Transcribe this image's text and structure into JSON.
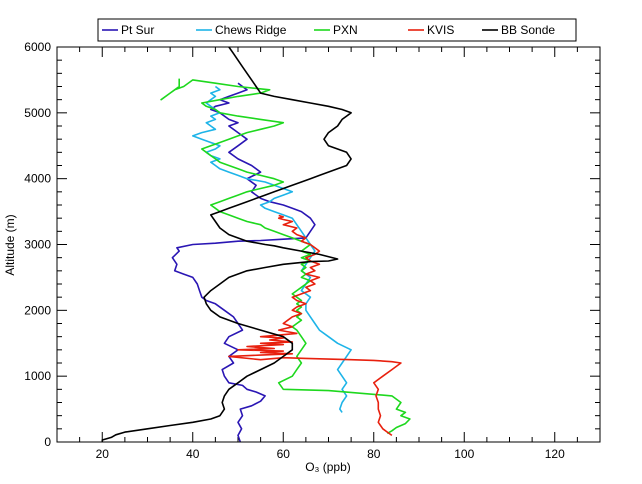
{
  "chart_data": {
    "type": "line",
    "title": "",
    "xlabel": "O₃ (ppb)",
    "ylabel": "Altitude (m)",
    "xlim": [
      10,
      130
    ],
    "ylim": [
      0,
      6000
    ],
    "x_ticks": [
      20,
      40,
      60,
      80,
      100,
      120
    ],
    "y_ticks": [
      0,
      1000,
      2000,
      3000,
      4000,
      5000,
      6000
    ],
    "x_tick_labels": [
      "20",
      "40",
      "60",
      "80",
      "100",
      "120"
    ],
    "y_tick_labels": [
      "0",
      "1000",
      "2000",
      "3000",
      "4000",
      "5000",
      "6000"
    ],
    "grid": false,
    "legend_position": "top",
    "series": [
      {
        "name": "Pt Sur",
        "color": "#2a16b4",
        "x": [
          50.5,
          50,
          50.8,
          50,
          51,
          50.5,
          53,
          55,
          56,
          54,
          52,
          51,
          48,
          47,
          46.5,
          49,
          48,
          50,
          47,
          48,
          51,
          50,
          49,
          47,
          45,
          43,
          42,
          41.5,
          41,
          40,
          38,
          36,
          36.5,
          35.5,
          37,
          36.5,
          40,
          45,
          50,
          55,
          60,
          65,
          66,
          67,
          66,
          64,
          62,
          60,
          57,
          55,
          53,
          54,
          52,
          55,
          53,
          50,
          48,
          50,
          52,
          50,
          48,
          50,
          48,
          46,
          44,
          45,
          48,
          46,
          48,
          50,
          52,
          51,
          50
        ],
        "y": [
          0,
          100,
          200,
          300,
          400,
          500,
          550,
          620,
          700,
          760,
          800,
          860,
          900,
          1000,
          1100,
          1200,
          1300,
          1400,
          1500,
          1600,
          1700,
          1800,
          1900,
          2000,
          2100,
          2150,
          2200,
          2300,
          2400,
          2500,
          2550,
          2600,
          2700,
          2800,
          2900,
          2950,
          3000,
          3020,
          3050,
          3060,
          3080,
          3100,
          3200,
          3300,
          3400,
          3500,
          3550,
          3600,
          3650,
          3700,
          3800,
          3900,
          4000,
          4100,
          4200,
          4300,
          4400,
          4500,
          4600,
          4700,
          4800,
          4850,
          4900,
          5000,
          5050,
          5100,
          5150,
          5200,
          5250,
          5300,
          5350,
          5400,
          5450
        ]
      },
      {
        "name": "Chews Ridge",
        "color": "#1eb4e8",
        "x": [
          73,
          72.5,
          73,
          74,
          73,
          74,
          73,
          72,
          73,
          74,
          75,
          72,
          70,
          68,
          67,
          66,
          65,
          65,
          66,
          64,
          65,
          66,
          64,
          65,
          66,
          67,
          66,
          65,
          64,
          63,
          62,
          60,
          58,
          56,
          55,
          57,
          58,
          60,
          62,
          60,
          58,
          56,
          52,
          50,
          48,
          46,
          45,
          44,
          46,
          44,
          43,
          45,
          46,
          44,
          42,
          40,
          42,
          45,
          44,
          43,
          45,
          44,
          46,
          45,
          44,
          43,
          44,
          45,
          44,
          46,
          45
        ],
        "y": [
          450,
          500,
          600,
          700,
          800,
          900,
          1000,
          1100,
          1200,
          1300,
          1400,
          1500,
          1600,
          1700,
          1800,
          1900,
          2000,
          2100,
          2200,
          2300,
          2400,
          2500,
          2600,
          2700,
          2800,
          2900,
          3000,
          3100,
          3200,
          3300,
          3400,
          3450,
          3500,
          3550,
          3600,
          3650,
          3700,
          3750,
          3800,
          3850,
          3900,
          3950,
          4000,
          4050,
          4100,
          4150,
          4200,
          4250,
          4300,
          4350,
          4400,
          4450,
          4500,
          4550,
          4600,
          4650,
          4700,
          4750,
          4800,
          4850,
          4900,
          4950,
          5000,
          5050,
          5100,
          5150,
          5200,
          5250,
          5300,
          5350,
          5400
        ]
      },
      {
        "name": "PXN",
        "color": "#1ed81e",
        "x": [
          83,
          84,
          85,
          87,
          88,
          86,
          87,
          85,
          86,
          84,
          70,
          60,
          59,
          62,
          63,
          64,
          63,
          64,
          65,
          64,
          63,
          62,
          63,
          64,
          63,
          64,
          63,
          64,
          63,
          64,
          63,
          62,
          63,
          64,
          65,
          66,
          64,
          65,
          64,
          65,
          64,
          66,
          64,
          66,
          64,
          65,
          66,
          64,
          62,
          60,
          58,
          56,
          55,
          52,
          50,
          48,
          46,
          45,
          44,
          46,
          48,
          50,
          52,
          55,
          58,
          60,
          58,
          55,
          52,
          50,
          48,
          46,
          45,
          44,
          43,
          42,
          44,
          46,
          48,
          50,
          52,
          55,
          58,
          60,
          55,
          50,
          46,
          45,
          43,
          42,
          46,
          50,
          55,
          57,
          50,
          45,
          40,
          38,
          36,
          35,
          34,
          33,
          35,
          37,
          37
        ],
        "y": [
          130,
          170,
          220,
          280,
          350,
          400,
          450,
          500,
          600,
          700,
          780,
          800,
          900,
          1000,
          1100,
          1200,
          1300,
          1400,
          1500,
          1600,
          1700,
          1750,
          1800,
          1850,
          1900,
          1950,
          2000,
          2050,
          2100,
          2150,
          2200,
          2250,
          2300,
          2350,
          2400,
          2450,
          2500,
          2550,
          2600,
          2650,
          2700,
          2750,
          2800,
          2850,
          2900,
          2950,
          3000,
          3050,
          3100,
          3150,
          3200,
          3250,
          3300,
          3350,
          3400,
          3450,
          3500,
          3550,
          3600,
          3650,
          3700,
          3750,
          3800,
          3850,
          3900,
          3950,
          4000,
          4050,
          4100,
          4150,
          4200,
          4250,
          4300,
          4350,
          4400,
          4450,
          4500,
          4550,
          4600,
          4650,
          4700,
          4750,
          4800,
          4850,
          4900,
          4950,
          5000,
          5050,
          5100,
          5150,
          5200,
          5250,
          5300,
          5350,
          5400,
          5450,
          5500,
          5400,
          5350,
          5300,
          5250,
          5200,
          5300,
          5400,
          5520
        ]
      },
      {
        "name": "KVIS",
        "color": "#e8200e",
        "x": [
          84,
          83,
          82,
          81.5,
          81,
          81.5,
          81,
          81,
          80.5,
          81,
          80,
          82,
          84,
          86,
          84,
          80,
          75,
          70,
          65,
          60,
          55,
          48,
          55,
          62,
          55,
          60,
          50,
          58,
          52,
          60,
          55,
          62,
          57,
          60,
          55,
          63,
          59,
          62,
          60,
          61,
          62,
          64,
          62,
          63,
          65,
          63,
          62,
          64,
          66,
          65,
          67,
          66,
          68,
          65,
          67,
          66,
          68,
          66,
          65,
          67,
          68,
          67,
          66,
          64,
          65,
          63,
          62,
          63,
          60,
          62,
          60,
          59,
          60,
          59
        ],
        "y": [
          100,
          150,
          200,
          250,
          300,
          400,
          500,
          600,
          700,
          800,
          900,
          1000,
          1100,
          1200,
          1220,
          1240,
          1250,
          1260,
          1270,
          1280,
          1250,
          1300,
          1320,
          1340,
          1360,
          1380,
          1400,
          1420,
          1450,
          1480,
          1500,
          1520,
          1550,
          1580,
          1600,
          1650,
          1700,
          1750,
          1800,
          1850,
          1900,
          1950,
          2000,
          2050,
          2100,
          2150,
          2200,
          2250,
          2300,
          2350,
          2400,
          2450,
          2500,
          2550,
          2600,
          2650,
          2700,
          2750,
          2800,
          2850,
          2900,
          2950,
          3000,
          3050,
          3100,
          3150,
          3200,
          3250,
          3300,
          3350,
          3380,
          3400,
          3420,
          3440
        ]
      },
      {
        "name": "BB Sonde",
        "color": "#000000",
        "x": [
          20,
          20,
          22,
          23,
          25,
          30,
          35,
          40,
          44,
          46,
          47,
          46.5,
          47,
          48,
          50,
          52,
          55,
          58,
          60,
          62,
          62,
          60,
          55,
          50,
          46,
          44,
          43,
          42.5,
          44,
          46,
          48,
          52,
          56,
          60,
          63,
          66,
          70,
          72,
          68,
          64,
          60,
          58,
          56,
          52,
          48,
          46,
          45,
          44,
          46,
          48,
          50,
          52,
          54,
          56,
          58,
          60,
          62,
          64,
          66,
          68,
          72,
          74,
          75,
          74,
          72,
          70,
          69,
          70,
          72,
          73,
          74,
          75,
          73,
          70,
          66,
          62,
          58,
          55,
          54,
          53,
          52,
          51,
          50,
          49,
          48
        ],
        "y": [
          0,
          30,
          70,
          110,
          150,
          200,
          250,
          300,
          350,
          400,
          500,
          600,
          700,
          800,
          900,
          1000,
          1100,
          1200,
          1300,
          1400,
          1500,
          1600,
          1700,
          1800,
          1900,
          2000,
          2100,
          2200,
          2300,
          2400,
          2500,
          2600,
          2650,
          2700,
          2720,
          2740,
          2750,
          2780,
          2850,
          2900,
          2950,
          2980,
          3000,
          3050,
          3150,
          3250,
          3350,
          3450,
          3500,
          3550,
          3600,
          3650,
          3700,
          3750,
          3800,
          3850,
          3900,
          3950,
          4000,
          4050,
          4150,
          4200,
          4300,
          4400,
          4450,
          4500,
          4600,
          4700,
          4800,
          4900,
          4950,
          5000,
          5050,
          5100,
          5150,
          5200,
          5250,
          5300,
          5400,
          5500,
          5600,
          5700,
          5800,
          5900,
          6000
        ]
      }
    ]
  }
}
